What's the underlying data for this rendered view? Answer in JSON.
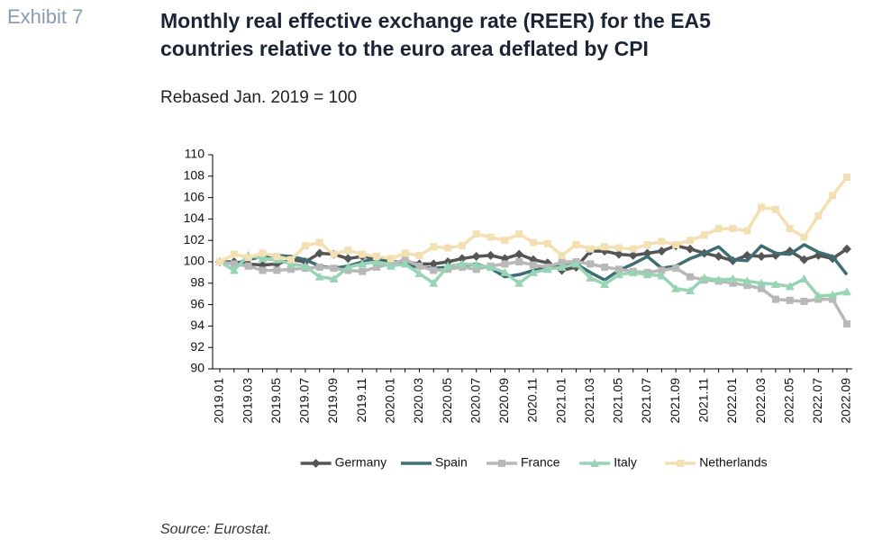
{
  "exhibit": "Exhibit 7",
  "chart_data": {
    "type": "line",
    "title": [
      "Monthly real effective exchange rate (REER) for the EA5",
      "countries relative to the euro area deflated by CPI"
    ],
    "subtitle": "Rebased Jan. 2019 = 100",
    "source": "Source: Eurostat.",
    "categories": [
      "2019.01",
      null,
      "2019.03",
      null,
      "2019.05",
      null,
      "2019.07",
      null,
      "2019.09",
      null,
      "2019.11",
      null,
      "2020.01",
      null,
      "2020.03",
      null,
      "2020.05",
      null,
      "2020.07",
      null,
      "2020.09",
      null,
      "2020.11",
      null,
      "2021.01",
      null,
      "2021.03",
      null,
      "2021.05",
      null,
      "2021.07",
      null,
      "2021.09",
      null,
      "2021.11",
      null,
      "2022.01",
      null,
      "2022.03",
      null,
      "2022.05",
      null,
      "2022.07",
      null,
      "2022.09"
    ],
    "ylim": [
      90,
      110
    ],
    "yticks": [
      90,
      92,
      94,
      96,
      98,
      100,
      102,
      104,
      106,
      108,
      110
    ],
    "legend": "bottom",
    "series": [
      {
        "name": "Germany",
        "color": "#555555",
        "marker": "diamond",
        "values": [
          100,
          100,
          99.8,
          99.7,
          99.8,
          100.2,
          100,
          100.8,
          100.7,
          100.3,
          100.5,
          100.3,
          100,
          100,
          99.8,
          99.8,
          100,
          100.3,
          100.5,
          100.6,
          100.3,
          100.7,
          100.2,
          99.9,
          99.2,
          99.5,
          101,
          101,
          100.7,
          100.6,
          100.8,
          101,
          101.5,
          101.2,
          100.8,
          100.5,
          100.1,
          100.6,
          100.5,
          100.6,
          101,
          100.2,
          100.6,
          100.3,
          101.2
        ]
      },
      {
        "name": "Spain",
        "color": "#3d6e73",
        "marker": "none",
        "values": [
          100,
          99.8,
          100.2,
          100.5,
          100.6,
          100.5,
          100.2,
          99.6,
          99.4,
          99.6,
          100,
          100.3,
          100,
          99.7,
          99.5,
          99.4,
          99.5,
          99.6,
          99.8,
          99.4,
          98.6,
          98.8,
          99.2,
          99.5,
          99.6,
          99.8,
          99,
          98.3,
          99.2,
          99.8,
          100.5,
          99.4,
          99.6,
          100.3,
          100.8,
          101.4,
          100.2,
          100.1,
          101.5,
          100.8,
          100.7,
          101.6,
          100.9,
          100.5,
          98.8
        ]
      },
      {
        "name": "France",
        "color": "#b8b8b8",
        "marker": "square",
        "values": [
          100,
          99.8,
          99.6,
          99.2,
          99.2,
          99.3,
          99.4,
          99.5,
          99.4,
          99.2,
          99.1,
          99.5,
          99.8,
          100.2,
          99.6,
          99.2,
          99.3,
          99.5,
          99.3,
          99.6,
          99.8,
          100,
          99.7,
          99.5,
          100,
          100,
          99.8,
          99.5,
          99.3,
          99.1,
          99,
          99.2,
          99.4,
          98.6,
          98.3,
          98.2,
          98,
          97.8,
          97.5,
          96.5,
          96.4,
          96.3,
          96.5,
          96.5,
          94.2
        ]
      },
      {
        "name": "Italy",
        "color": "#96d4b4",
        "marker": "triangle",
        "values": [
          100,
          99.2,
          100.6,
          100.3,
          100.2,
          99.8,
          99.6,
          98.6,
          98.4,
          99.5,
          99.8,
          100,
          99.6,
          99.8,
          98.9,
          98,
          99.6,
          99.8,
          99.7,
          99.5,
          99,
          98,
          99,
          99.3,
          99.5,
          99.8,
          98.5,
          97.9,
          98.8,
          99,
          98.8,
          98.7,
          97.5,
          97.3,
          98.5,
          98.3,
          98.4,
          98.2,
          98,
          97.9,
          97.7,
          98.4,
          96.8,
          96.9,
          97.2
        ]
      },
      {
        "name": "Netherlands",
        "color": "#f2e0b3",
        "marker": "square",
        "values": [
          100,
          100.7,
          100.4,
          100.8,
          100.5,
          100.2,
          101.5,
          101.8,
          100.7,
          101.1,
          100.7,
          100.5,
          100.3,
          100.8,
          100.6,
          101.4,
          101.3,
          101.5,
          102.6,
          102.3,
          102,
          102.6,
          101.8,
          101.7,
          100.6,
          101.6,
          101.2,
          101.4,
          101.3,
          101.2,
          101.6,
          101.9,
          101.6,
          102,
          102.5,
          103.1,
          103.1,
          102.9,
          105.1,
          104.9,
          103.1,
          102.3,
          104.3,
          106.2,
          107.9
        ]
      }
    ]
  }
}
